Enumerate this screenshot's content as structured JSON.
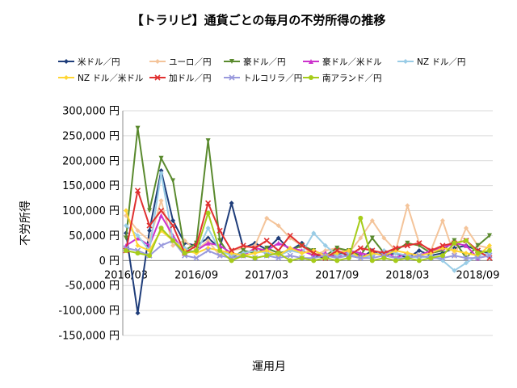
{
  "chart_data": {
    "type": "line",
    "title": "【トラリピ】通貨ごとの毎月の不労所得の推移",
    "xlabel": "運用月",
    "ylabel": "不労所得",
    "ylim": [
      -150000,
      300000
    ],
    "y_ticks": [
      "-150,000 円",
      "-100,000 円",
      "-50,000 円",
      "0 円",
      "50,000 円",
      "100,000 円",
      "150,000 円",
      "200,000 円",
      "250,000 円",
      "300,000 円"
    ],
    "y_tick_values": [
      -150000,
      -100000,
      -50000,
      0,
      50000,
      100000,
      150000,
      200000,
      250000,
      300000
    ],
    "x": [
      "2016/03",
      "2016/04",
      "2016/05",
      "2016/06",
      "2016/07",
      "2016/08",
      "2016/09",
      "2016/10",
      "2016/11",
      "2016/12",
      "2017/01",
      "2017/02",
      "2017/03",
      "2017/04",
      "2017/05",
      "2017/06",
      "2017/07",
      "2017/08",
      "2017/09",
      "2017/10",
      "2017/11",
      "2017/12",
      "2018/01",
      "2018/02",
      "2018/03",
      "2018/04",
      "2018/05",
      "2018/06",
      "2018/07",
      "2018/08",
      "2018/09",
      "2018/10"
    ],
    "x_tick_labels": [
      "2016/03",
      "2016/09",
      "2017/03",
      "2017/09",
      "2018/03",
      "2018/09"
    ],
    "x_tick_positions": [
      0,
      6,
      12,
      18,
      24,
      30
    ],
    "grid": true,
    "legend": "top",
    "series": [
      {
        "name": "米ドル／円",
        "color": "#1f3d7a",
        "marker": "diamond",
        "values": [
          55000,
          -105000,
          60000,
          180000,
          80000,
          35000,
          30000,
          45000,
          25000,
          115000,
          25000,
          35000,
          22000,
          45000,
          20000,
          35000,
          10000,
          5000,
          15000,
          10000,
          5000,
          20000,
          10000,
          15000,
          5000,
          20000,
          10000,
          15000,
          25000,
          30000,
          20000,
          15000
        ]
      },
      {
        "name": "ユーロ／円",
        "color": "#f4c49a",
        "marker": "diamond",
        "values": [
          90000,
          60000,
          40000,
          120000,
          30000,
          40000,
          20000,
          40000,
          10000,
          20000,
          25000,
          30000,
          85000,
          70000,
          45000,
          30000,
          10000,
          20000,
          25000,
          15000,
          45000,
          80000,
          45000,
          20000,
          110000,
          35000,
          20000,
          80000,
          10000,
          65000,
          30000,
          25000
        ]
      },
      {
        "name": "豪ドル／円",
        "color": "#5a8a2e",
        "marker": "triangle-down",
        "values": [
          45000,
          265000,
          100000,
          205000,
          160000,
          20000,
          35000,
          240000,
          40000,
          5000,
          20000,
          15000,
          25000,
          15000,
          20000,
          30000,
          20000,
          10000,
          25000,
          20000,
          10000,
          45000,
          15000,
          20000,
          35000,
          30000,
          15000,
          20000,
          40000,
          5000,
          30000,
          50000
        ]
      },
      {
        "name": "豪ドル／米ドル",
        "color": "#cc33cc",
        "marker": "triangle-up",
        "values": [
          30000,
          45000,
          30000,
          90000,
          50000,
          15000,
          20000,
          35000,
          30000,
          15000,
          10000,
          25000,
          20000,
          35000,
          25000,
          20000,
          10000,
          15000,
          5000,
          20000,
          15000,
          10000,
          20000,
          5000,
          15000,
          10000,
          20000,
          25000,
          35000,
          30000,
          5000,
          10000
        ]
      },
      {
        "name": "NZ ドル／円",
        "color": "#99cce6",
        "marker": "diamond",
        "values": [
          70000,
          50000,
          20000,
          175000,
          40000,
          25000,
          15000,
          65000,
          20000,
          10000,
          15000,
          20000,
          15000,
          10000,
          20000,
          15000,
          55000,
          30000,
          10000,
          15000,
          5000,
          10000,
          20000,
          15000,
          10000,
          5000,
          10000,
          0,
          -20000,
          -5000,
          10000,
          15000
        ]
      },
      {
        "name": "NZ ドル／米ドル",
        "color": "#ffd633",
        "marker": "diamond",
        "values": [
          100000,
          30000,
          20000,
          60000,
          40000,
          20000,
          15000,
          25000,
          20000,
          15000,
          10000,
          15000,
          20000,
          10000,
          25000,
          15000,
          20000,
          10000,
          15000,
          20000,
          5000,
          15000,
          10000,
          20000,
          15000,
          10000,
          15000,
          25000,
          20000,
          15000,
          10000,
          30000
        ]
      },
      {
        "name": "加ドル／円",
        "color": "#e03030",
        "marker": "x",
        "values": [
          20000,
          140000,
          70000,
          100000,
          70000,
          15000,
          30000,
          115000,
          60000,
          20000,
          30000,
          25000,
          40000,
          20000,
          50000,
          30000,
          15000,
          5000,
          20000,
          10000,
          25000,
          20000,
          15000,
          25000,
          30000,
          35000,
          20000,
          30000,
          35000,
          40000,
          20000,
          5000
        ]
      },
      {
        "name": "トルコリラ／円",
        "color": "#9999dd",
        "marker": "x",
        "values": [
          25000,
          20000,
          10000,
          30000,
          40000,
          10000,
          5000,
          20000,
          10000,
          5000,
          10000,
          5000,
          10000,
          5000,
          10000,
          5000,
          5000,
          10000,
          5000,
          10000,
          5000,
          5000,
          10000,
          5000,
          5000,
          10000,
          5000,
          5000,
          10000,
          5000,
          5000,
          10000
        ]
      },
      {
        "name": "南アランド／円",
        "color": "#a6cc1a",
        "marker": "circle",
        "values": [
          20000,
          15000,
          10000,
          65000,
          40000,
          15000,
          20000,
          95000,
          20000,
          0,
          10000,
          5000,
          10000,
          15000,
          0,
          5000,
          0,
          5000,
          0,
          5000,
          85000,
          0,
          5000,
          0,
          5000,
          0,
          5000,
          10000,
          35000,
          40000,
          15000,
          20000
        ]
      }
    ]
  }
}
